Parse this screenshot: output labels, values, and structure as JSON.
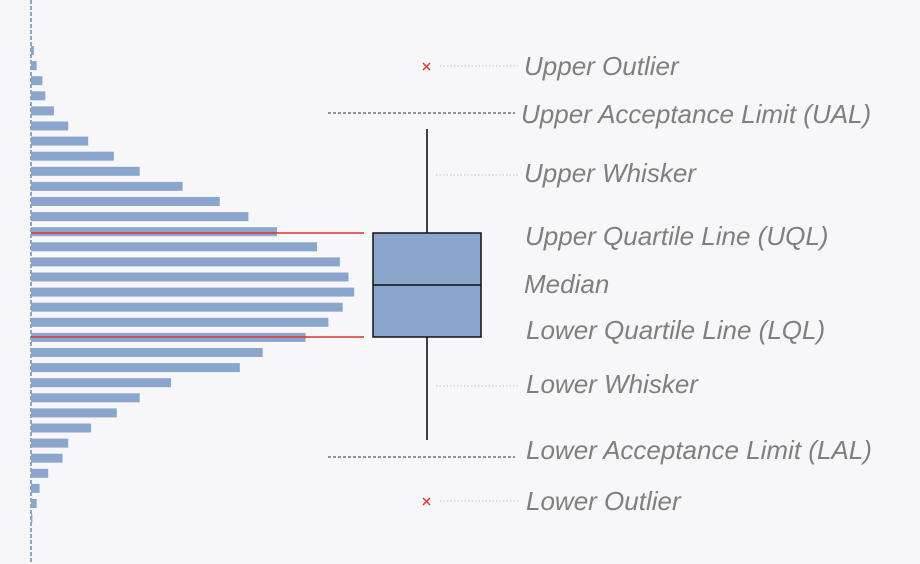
{
  "histogram": {
    "bar_color": "#8ba6cd",
    "relative_lengths": [
      0.01,
      0.02,
      0.04,
      0.05,
      0.08,
      0.13,
      0.2,
      0.29,
      0.38,
      0.53,
      0.66,
      0.76,
      0.86,
      1.0,
      1.08,
      1.11,
      1.13,
      1.09,
      1.04,
      0.96,
      0.81,
      0.73,
      0.49,
      0.38,
      0.3,
      0.21,
      0.13,
      0.11,
      0.06,
      0.03,
      0.02,
      0.005
    ]
  },
  "colors": {
    "box_fill": "#8ba6cd",
    "quartile_line": "#e03030",
    "outlier": "#e83030",
    "axis": "#6b8bb6",
    "label": "#7f7f7f"
  },
  "labels": {
    "upper_outlier": "Upper Outlier",
    "ual": "Upper Acceptance Limit (UAL)",
    "upper_whisker": "Upper Whisker",
    "uql": "Upper Quartile Line (UQL)",
    "median": "Median",
    "lql": "Lower Quartile Line (LQL)",
    "lower_whisker": "Lower Whisker",
    "lal": "Lower Acceptance Limit (LAL)",
    "lower_outlier": "Lower Outlier"
  }
}
